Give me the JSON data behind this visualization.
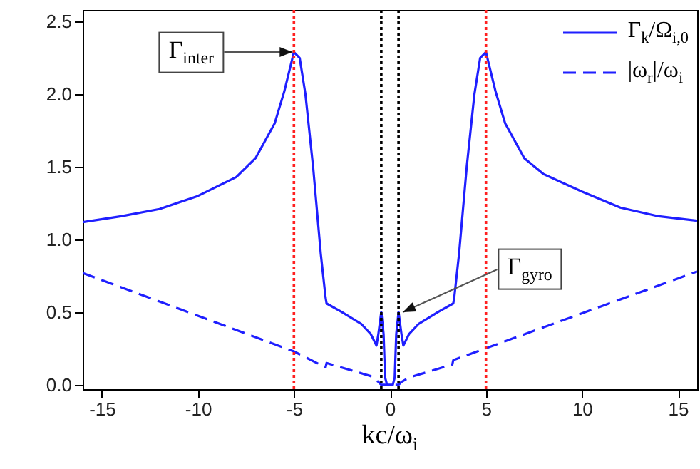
{
  "chart_data": {
    "type": "line",
    "xlabel": "kc/ω$_{i}$",
    "xlim": [
      -16,
      16
    ],
    "ylim": [
      -0.03,
      2.58
    ],
    "xticks": [
      -15,
      -10,
      -5,
      0,
      5,
      10,
      15
    ],
    "yticks": [
      {
        "value": 0,
        "label": "0.0"
      },
      {
        "value": 0.5,
        "label": "0.5"
      },
      {
        "value": 1,
        "label": "1.0"
      },
      {
        "value": 1.5,
        "label": "1.5"
      },
      {
        "value": 2,
        "label": "2.0"
      },
      {
        "value": 2.5,
        "label": "2.5"
      }
    ],
    "grid": false,
    "legend": "top right",
    "marker": "none",
    "series": [
      {
        "name": "Γ$_{k}$/Ω$_{i,0}$",
        "color": "#1f1fff",
        "line_style": "solid",
        "x": [
          -16,
          -14,
          -12,
          -10,
          -8,
          -7,
          -6,
          -5.5,
          -5,
          -4.7,
          -4.4,
          -4,
          -3.6,
          -3.35,
          -3.3,
          -2.5,
          -1.5,
          -1,
          -0.7,
          -0.6,
          -0.45,
          -0.33,
          -0.25,
          -0.15,
          0,
          0.15,
          0.25,
          0.33,
          0.45,
          0.6,
          0.7,
          1,
          1.5,
          2.5,
          3.3,
          3.35,
          3.6,
          4,
          4.4,
          4.7,
          5,
          5.5,
          6,
          7,
          8,
          10,
          12,
          14,
          16
        ],
        "values": [
          1.12,
          1.16,
          1.21,
          1.3,
          1.43,
          1.56,
          1.8,
          2.02,
          2.29,
          2.25,
          2.0,
          1.5,
          0.9,
          0.6,
          0.56,
          0.5,
          0.42,
          0.35,
          0.27,
          0.35,
          0.5,
          0.35,
          0.05,
          0.0,
          0.0,
          0.0,
          0.05,
          0.35,
          0.5,
          0.35,
          0.27,
          0.35,
          0.42,
          0.5,
          0.56,
          0.6,
          0.9,
          1.5,
          2.0,
          2.25,
          2.29,
          2.02,
          1.8,
          1.56,
          1.45,
          1.33,
          1.22,
          1.16,
          1.13
        ]
      },
      {
        "name": "|ω$_{r}$|/ω$_{i}$",
        "color": "#1f1fff",
        "line_style": "dashed",
        "x": [
          -16,
          -5,
          -3.35,
          -3.3,
          -1,
          -0.6,
          -0.45,
          0,
          0.45,
          0.6,
          1,
          3.25,
          3.3,
          16
        ],
        "values": [
          0.77,
          0.23,
          0.12,
          0.15,
          0.06,
          0.02,
          0.0,
          0.0,
          0.0,
          0.02,
          0.05,
          0.14,
          0.17,
          0.78
        ]
      }
    ],
    "ref_lines": [
      {
        "axis": "x",
        "value": -5,
        "color": "#ff2020",
        "line_style": "dotted"
      },
      {
        "axis": "x",
        "value": 5,
        "color": "#ff2020",
        "line_style": "dotted"
      },
      {
        "axis": "x",
        "value": -0.45,
        "color": "#000000",
        "line_style": "dotted"
      },
      {
        "axis": "x",
        "value": 0.45,
        "color": "#000000",
        "line_style": "dotted"
      }
    ],
    "annotations": [
      {
        "text": "Γ$_{inter}$",
        "x": -5,
        "y": 2.29
      },
      {
        "text": "Γ$_{gyro}$",
        "x": 0.45,
        "y": 0.5
      }
    ]
  }
}
